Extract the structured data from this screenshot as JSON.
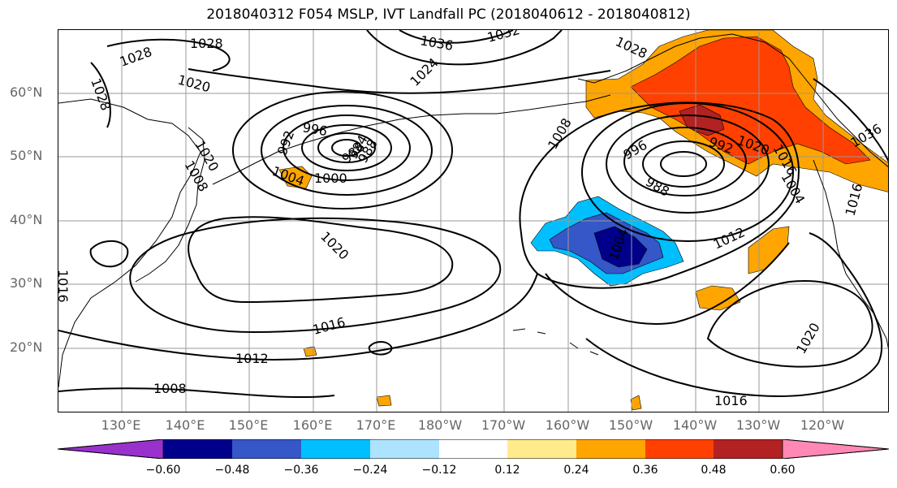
{
  "title": "2018040312 F054 MSLP, IVT Landfall PC (2018040612 - 2018040812)",
  "lat_labels": [
    "60°N",
    "50°N",
    "40°N",
    "30°N",
    "20°N"
  ],
  "lon_labels": [
    "130°E",
    "140°E",
    "150°E",
    "160°E",
    "170°E",
    "180°W",
    "170°W",
    "160°W",
    "150°W",
    "140°W",
    "130°W",
    "120°W"
  ],
  "colorbar": {
    "colors": [
      "#9932cc",
      "#00008b",
      "#3557c8",
      "#00bfff",
      "#aee3ff",
      "#ffffff",
      "#ffeb8c",
      "#ffa500",
      "#ff4000",
      "#b22222",
      "#ff88b4"
    ],
    "ticks": [
      "−0.60",
      "−0.48",
      "−0.36",
      "−0.24",
      "−0.12",
      "0.12",
      "0.24",
      "0.36",
      "0.48",
      "0.60"
    ]
  },
  "contour_labels": [
    "1028",
    "1028",
    "1020",
    "1028",
    "1036",
    "1032",
    "1024",
    "1028",
    "1020",
    "996",
    "992",
    "1008",
    "1004",
    "1000",
    "988",
    "984",
    "988",
    "1008",
    "996",
    "988",
    "992",
    "1004",
    "1016",
    "1020",
    "1012",
    "1036",
    "1016",
    "1020",
    "1016",
    "1012",
    "1008",
    "1016",
    "1020",
    "1016",
    "1004"
  ]
}
